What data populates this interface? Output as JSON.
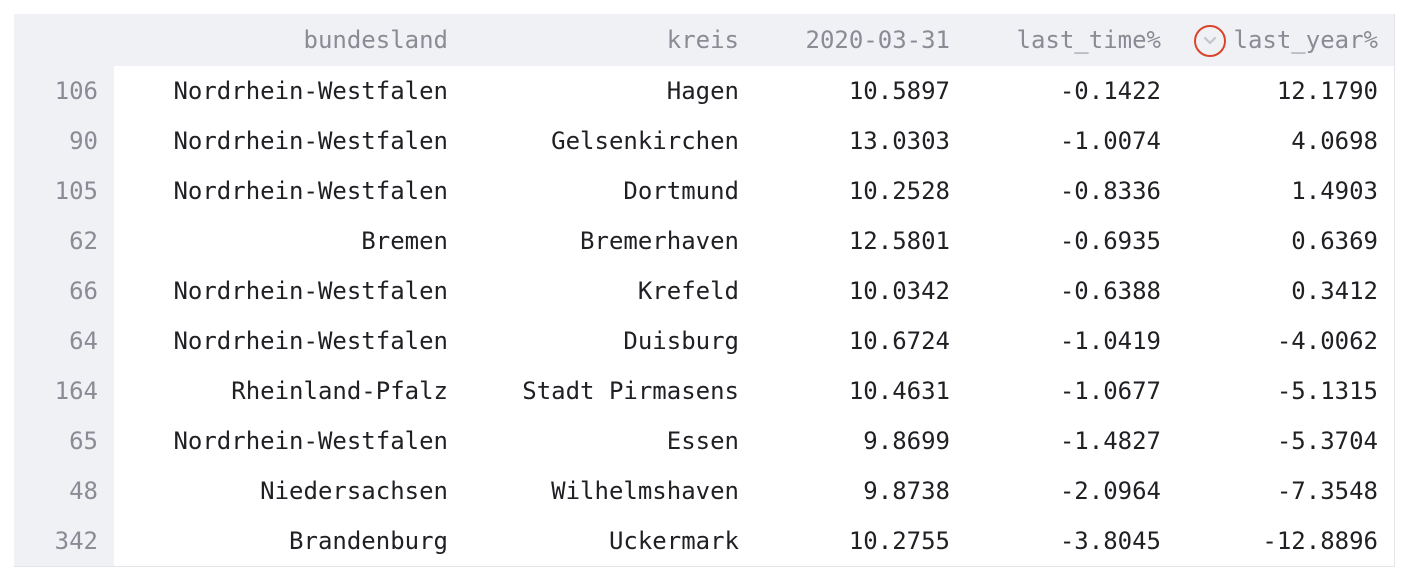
{
  "table": {
    "columns": {
      "index": "",
      "bundesland": "bundesland",
      "kreis": "kreis",
      "date": "2020-03-31",
      "last_time": "last_time%",
      "last_year": "last_year%"
    },
    "sort_indicator": {
      "column": "last_year%",
      "direction": "descending",
      "icon": "chevron-down-icon",
      "highlight_color": "#d9442b"
    },
    "rows": [
      {
        "index": "106",
        "bundesland": "Nordrhein-Westfalen",
        "kreis": "Hagen",
        "date": "10.5897",
        "last_time": "-0.1422",
        "last_year": "12.1790"
      },
      {
        "index": "90",
        "bundesland": "Nordrhein-Westfalen",
        "kreis": "Gelsenkirchen",
        "date": "13.0303",
        "last_time": "-1.0074",
        "last_year": "4.0698"
      },
      {
        "index": "105",
        "bundesland": "Nordrhein-Westfalen",
        "kreis": "Dortmund",
        "date": "10.2528",
        "last_time": "-0.8336",
        "last_year": "1.4903"
      },
      {
        "index": "62",
        "bundesland": "Bremen",
        "kreis": "Bremerhaven",
        "date": "12.5801",
        "last_time": "-0.6935",
        "last_year": "0.6369"
      },
      {
        "index": "66",
        "bundesland": "Nordrhein-Westfalen",
        "kreis": "Krefeld",
        "date": "10.0342",
        "last_time": "-0.6388",
        "last_year": "0.3412"
      },
      {
        "index": "64",
        "bundesland": "Nordrhein-Westfalen",
        "kreis": "Duisburg",
        "date": "10.6724",
        "last_time": "-1.0419",
        "last_year": "-4.0062"
      },
      {
        "index": "164",
        "bundesland": "Rheinland-Pfalz",
        "kreis": "Stadt Pirmasens",
        "date": "10.4631",
        "last_time": "-1.0677",
        "last_year": "-5.1315"
      },
      {
        "index": "65",
        "bundesland": "Nordrhein-Westfalen",
        "kreis": "Essen",
        "date": "9.8699",
        "last_time": "-1.4827",
        "last_year": "-5.3704"
      },
      {
        "index": "48",
        "bundesland": "Niedersachsen",
        "kreis": "Wilhelmshaven",
        "date": "9.8738",
        "last_time": "-2.0964",
        "last_year": "-7.3548"
      },
      {
        "index": "342",
        "bundesland": "Brandenburg",
        "kreis": "Uckermark",
        "date": "10.2755",
        "last_time": "-3.8045",
        "last_year": "-12.8896"
      }
    ]
  }
}
